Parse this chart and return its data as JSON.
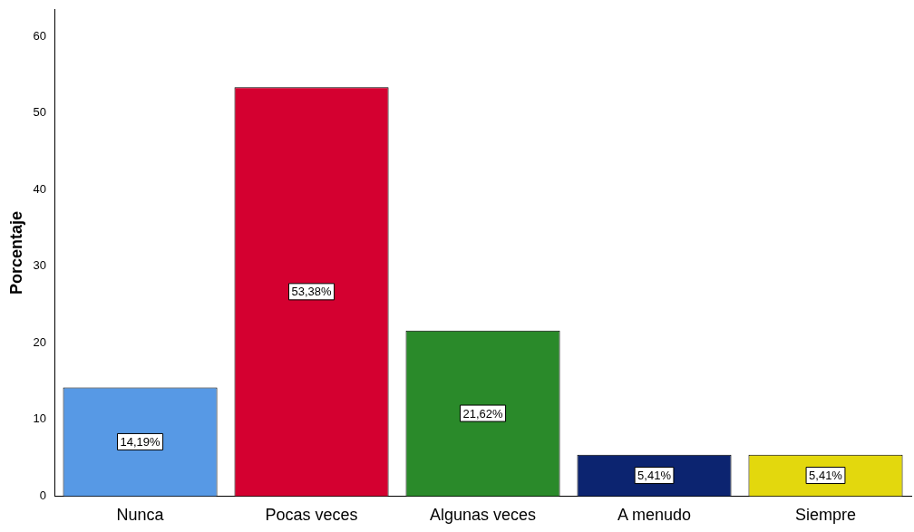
{
  "chart_data": {
    "type": "bar",
    "ylabel": "Porcentaje",
    "categories": [
      "Nunca",
      "Pocas veces",
      "Algunas veces",
      "A menudo",
      "Siempre"
    ],
    "values": [
      14.19,
      53.38,
      21.62,
      5.41,
      5.41
    ],
    "colors": [
      "#5799e5",
      "#d40030",
      "#2a8a2a",
      "#0c2470",
      "#e3d80d"
    ],
    "value_labels": [
      "14,19%",
      "53,38%",
      "21,62%",
      "5,41%",
      "5,41%"
    ],
    "ylim": [
      0,
      63.5
    ],
    "yticks": [
      0,
      10,
      20,
      30,
      40,
      50,
      60
    ],
    "grid": false,
    "legend": false
  }
}
